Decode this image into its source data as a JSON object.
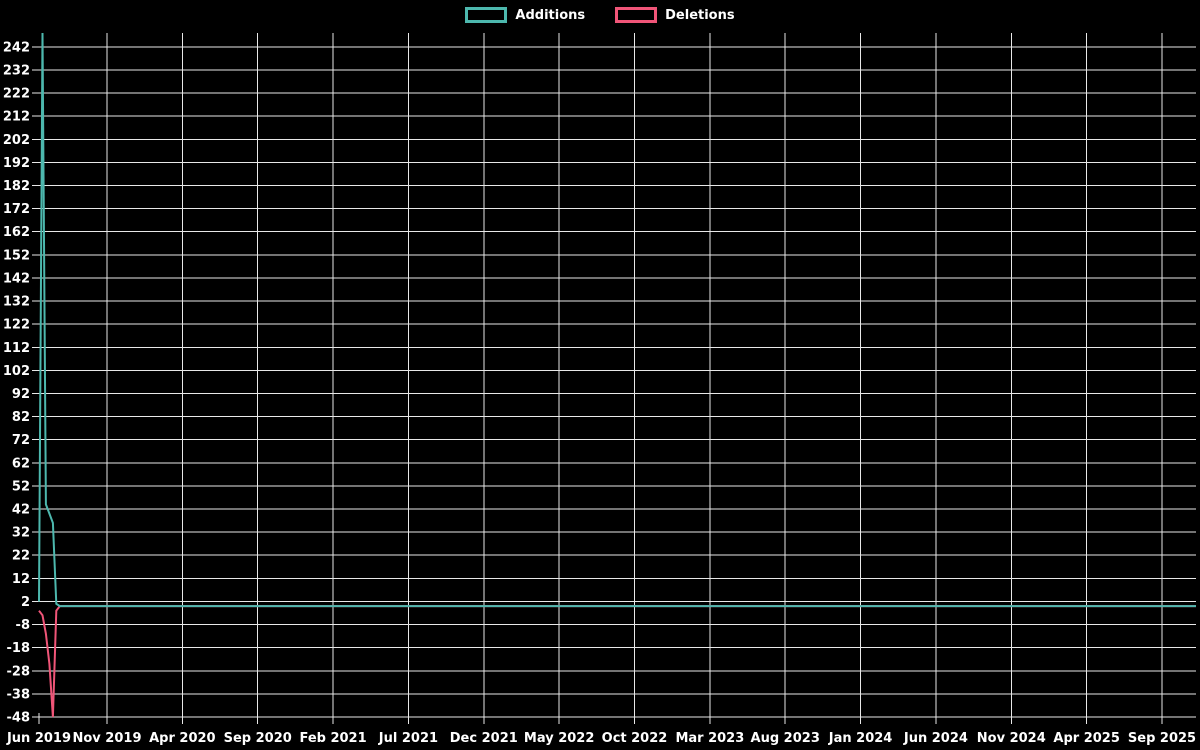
{
  "legend": {
    "items": [
      {
        "label": "Additions",
        "color": "#4db8ae"
      },
      {
        "label": "Deletions",
        "color": "#f05578"
      }
    ]
  },
  "chart_data": {
    "type": "line",
    "title": "",
    "legend_position": "top-center",
    "background_color": "#000000",
    "grid_color": "#e8e8e8",
    "text_color": "#ffffff",
    "grid": true,
    "x_axis": {
      "start": "2019-06-16",
      "end": "2025-09-01",
      "tick_labels": [
        "Jun 2019",
        "Nov 2019",
        "Apr 2020",
        "Sep 2020",
        "Feb 2021",
        "Jul 2021",
        "Dec 2021",
        "May 2022",
        "Oct 2022",
        "Mar 2023",
        "Aug 2023",
        "Jan 2024",
        "Jun 2024",
        "Nov 2024",
        "Apr 2025",
        "Sep 2025"
      ]
    },
    "y_axis": {
      "min": -48,
      "max": 248,
      "tick_step": 10,
      "tick_labels": [
        242,
        232,
        222,
        212,
        202,
        192,
        182,
        172,
        162,
        152,
        142,
        132,
        122,
        112,
        102,
        92,
        82,
        72,
        62,
        52,
        42,
        32,
        22,
        12,
        2,
        -8,
        -18,
        -28,
        -38,
        -48
      ]
    },
    "series": [
      {
        "name": "Additions",
        "color": "#4db8ae",
        "points": [
          [
            "2019-06-16",
            2
          ],
          [
            "2019-06-23",
            248
          ],
          [
            "2019-06-30",
            44
          ],
          [
            "2019-07-07",
            40
          ],
          [
            "2019-07-14",
            36
          ],
          [
            "2019-07-21",
            1
          ],
          [
            "2019-07-28",
            0
          ]
        ],
        "flat_value": 0,
        "flat_through": "2025-09-01"
      },
      {
        "name": "Deletions",
        "color": "#f05578",
        "points": [
          [
            "2019-06-16",
            -2
          ],
          [
            "2019-06-23",
            -4
          ],
          [
            "2019-06-30",
            -12
          ],
          [
            "2019-07-07",
            -25
          ],
          [
            "2019-07-14",
            -48
          ],
          [
            "2019-07-21",
            -2
          ],
          [
            "2019-07-28",
            0
          ]
        ],
        "flat_value": 0,
        "flat_through": "2025-09-01"
      }
    ]
  }
}
